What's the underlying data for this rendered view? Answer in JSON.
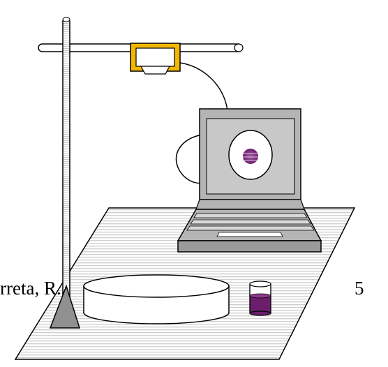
{
  "footer": {
    "author_fragment": "rreta, R. ",
    "page_number": "5"
  },
  "colors": {
    "clamp": "#f2b800",
    "liquid": "#6b1e6b",
    "screen_bg": "#c8c8c8",
    "laptop_body": "#b4b4b4",
    "table_stripes": "#d6d6d6"
  },
  "icons": [
    "lab-stand-icon",
    "camera-clamp-icon",
    "laptop-icon",
    "petri-dish-icon",
    "beaker-icon",
    "cable-icon"
  ]
}
